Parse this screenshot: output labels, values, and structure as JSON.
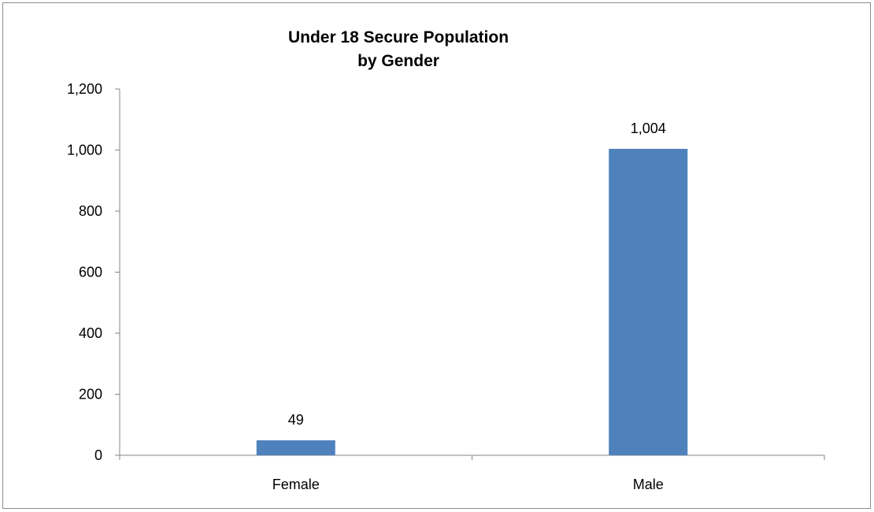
{
  "chart_data": {
    "type": "bar",
    "title": "Under 18 Secure Population",
    "subtitle": "by Gender",
    "categories": [
      "Female",
      "Male"
    ],
    "values": [
      49,
      1004
    ],
    "data_labels": [
      "49",
      "1,004"
    ],
    "xlabel": "",
    "ylabel": "",
    "ylim": [
      0,
      1200
    ],
    "y_ticks": [
      0,
      200,
      400,
      600,
      800,
      1000,
      1200
    ],
    "y_tick_labels": [
      "0",
      "200",
      "400",
      "600",
      "800",
      "1,000",
      "1,200"
    ],
    "grid": false,
    "legend": "none",
    "bar_color": "#4f81bd"
  }
}
